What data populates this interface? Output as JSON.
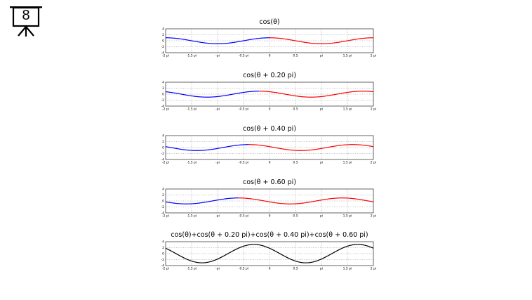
{
  "slide": {
    "number": "8",
    "icon": "presentation-easel-icon"
  },
  "colors": {
    "negative_region": "#0000ff",
    "positive_region": "#ff0000",
    "sum": "#000000",
    "grid": "#888888",
    "frame": "#000000"
  },
  "chart_data": [
    {
      "type": "line",
      "title": "cos(θ)",
      "phase_pi": 0.0,
      "x_ticks": [
        "-2 pi",
        "-1.5 pi",
        "-pi",
        "-0.5 pi",
        "0",
        "0.5",
        "pi",
        "1.5 pi",
        "2 pi"
      ],
      "y_ticks": [
        "4",
        "2",
        "0",
        "-2",
        "-4"
      ],
      "xlim": [
        -6.2832,
        6.2832
      ],
      "ylim": [
        -4,
        4
      ],
      "series": [
        {
          "formula": "cos(x + 0.0*pi)",
          "color_split_at_x": 0.0,
          "color_left": "#0000ff",
          "color_right": "#ff0000"
        }
      ],
      "grid": true
    },
    {
      "type": "line",
      "title": "cos(θ + 0.20 pi)",
      "phase_pi": 0.2,
      "x_ticks": [
        "-2 pi",
        "-1.5 pi",
        "-pi",
        "-0.5 pi",
        "0",
        "0.5",
        "pi",
        "1.5 pi",
        "2 pi"
      ],
      "y_ticks": [
        "4",
        "2",
        "0",
        "-2",
        "-4"
      ],
      "xlim": [
        -6.2832,
        6.2832
      ],
      "ylim": [
        -4,
        4
      ],
      "series": [
        {
          "formula": "cos(x + 0.2*pi)",
          "color_split_at_x": -0.6283,
          "color_left": "#0000ff",
          "color_right": "#ff0000"
        }
      ],
      "grid": true
    },
    {
      "type": "line",
      "title": "cos(θ + 0.40 pi)",
      "phase_pi": 0.4,
      "x_ticks": [
        "-2 pi",
        "-1.5 pi",
        "-pi",
        "-0.5 pi",
        "0",
        "0.5",
        "pi",
        "1.5 pi",
        "2 pi"
      ],
      "y_ticks": [
        "4",
        "2",
        "0",
        "-2",
        "-4"
      ],
      "xlim": [
        -6.2832,
        6.2832
      ],
      "ylim": [
        -4,
        4
      ],
      "series": [
        {
          "formula": "cos(x + 0.4*pi)",
          "color_split_at_x": -1.2566,
          "color_left": "#0000ff",
          "color_right": "#ff0000"
        }
      ],
      "grid": true
    },
    {
      "type": "line",
      "title": "cos(θ + 0.60 pi)",
      "phase_pi": 0.6,
      "x_ticks": [
        "-2 pi",
        "-1.5 pi",
        "-pi",
        "-0.5 pi",
        "0",
        "0.5",
        "pi",
        "1.5 pi",
        "2 pi"
      ],
      "y_ticks": [
        "4",
        "2",
        "0",
        "-2",
        "-4"
      ],
      "xlim": [
        -6.2832,
        6.2832
      ],
      "ylim": [
        -4,
        4
      ],
      "series": [
        {
          "formula": "cos(x + 0.6*pi)",
          "color_split_at_x": -1.885,
          "color_left": "#0000ff",
          "color_right": "#ff0000"
        }
      ],
      "grid": true
    },
    {
      "type": "line",
      "title": "cos(θ)+cos(θ + 0.20 pi)+cos(θ + 0.40 pi)+cos(θ + 0.60 pi)",
      "phase_pi": null,
      "sum_of_phases_pi": [
        0.0,
        0.2,
        0.4,
        0.6
      ],
      "x_ticks": [
        "-2 pi",
        "-1.5 pi",
        "-pi",
        "-0.5 pi",
        "0",
        "0.5",
        "pi",
        "1.5 pi",
        "2 pi"
      ],
      "y_ticks": [
        "4",
        "2",
        "0",
        "-2",
        "-4"
      ],
      "xlim": [
        -6.2832,
        6.2832
      ],
      "ylim": [
        -4,
        4
      ],
      "series": [
        {
          "formula": "cos(x)+cos(x+0.2pi)+cos(x+0.4pi)+cos(x+0.6pi)",
          "color": "#000000"
        }
      ],
      "grid": true
    }
  ]
}
